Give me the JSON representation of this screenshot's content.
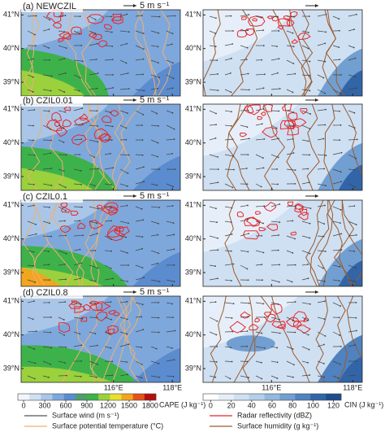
{
  "panels": [
    {
      "label": "(a) NEWCZIL"
    },
    {
      "label": "(b) CZIL0.01"
    },
    {
      "label": "(c) CZIL0.1"
    },
    {
      "label": "(d) CZIL0.8"
    }
  ],
  "scale_label": "5 m s⁻¹",
  "lat_ticks": [
    "41°N",
    "40°N",
    "39°N"
  ],
  "lon_ticks": [
    "116°E",
    "118°E"
  ],
  "cape_colorbar": {
    "ticks": [
      0,
      300,
      600,
      900,
      1200,
      1500,
      1800
    ],
    "title": "CAPE (J kg⁻¹)",
    "colors": [
      "#f2f6fb",
      "#cfe0f2",
      "#a9c6e8",
      "#7ea8dc",
      "#5b8ccf",
      "#4f9e6c",
      "#3db24a",
      "#9ad13c",
      "#e8e02e",
      "#f2a51f",
      "#e5531a",
      "#b30f0f"
    ]
  },
  "cin_colorbar": {
    "ticks": [
      0,
      20,
      40,
      60,
      80,
      100,
      120
    ],
    "title": "CIN (J kg⁻¹)",
    "colors": [
      "#ffffff",
      "#e6eff9",
      "#cfe0f2",
      "#b4cfea",
      "#94b9df",
      "#729fd1",
      "#5082bf",
      "#3265a8",
      "#1f4c8f"
    ]
  },
  "legend": [
    {
      "text": "Surface wind (m s⁻¹)",
      "color": "#555555"
    },
    {
      "text": "Radar reflectivity (dBZ)",
      "color": "#e8262a"
    },
    {
      "text": "Surface potential temperature (°C)",
      "color": "#f0b070"
    },
    {
      "text": "Surface humidity (g kg⁻¹)",
      "color": "#9c5a2c"
    }
  ]
}
